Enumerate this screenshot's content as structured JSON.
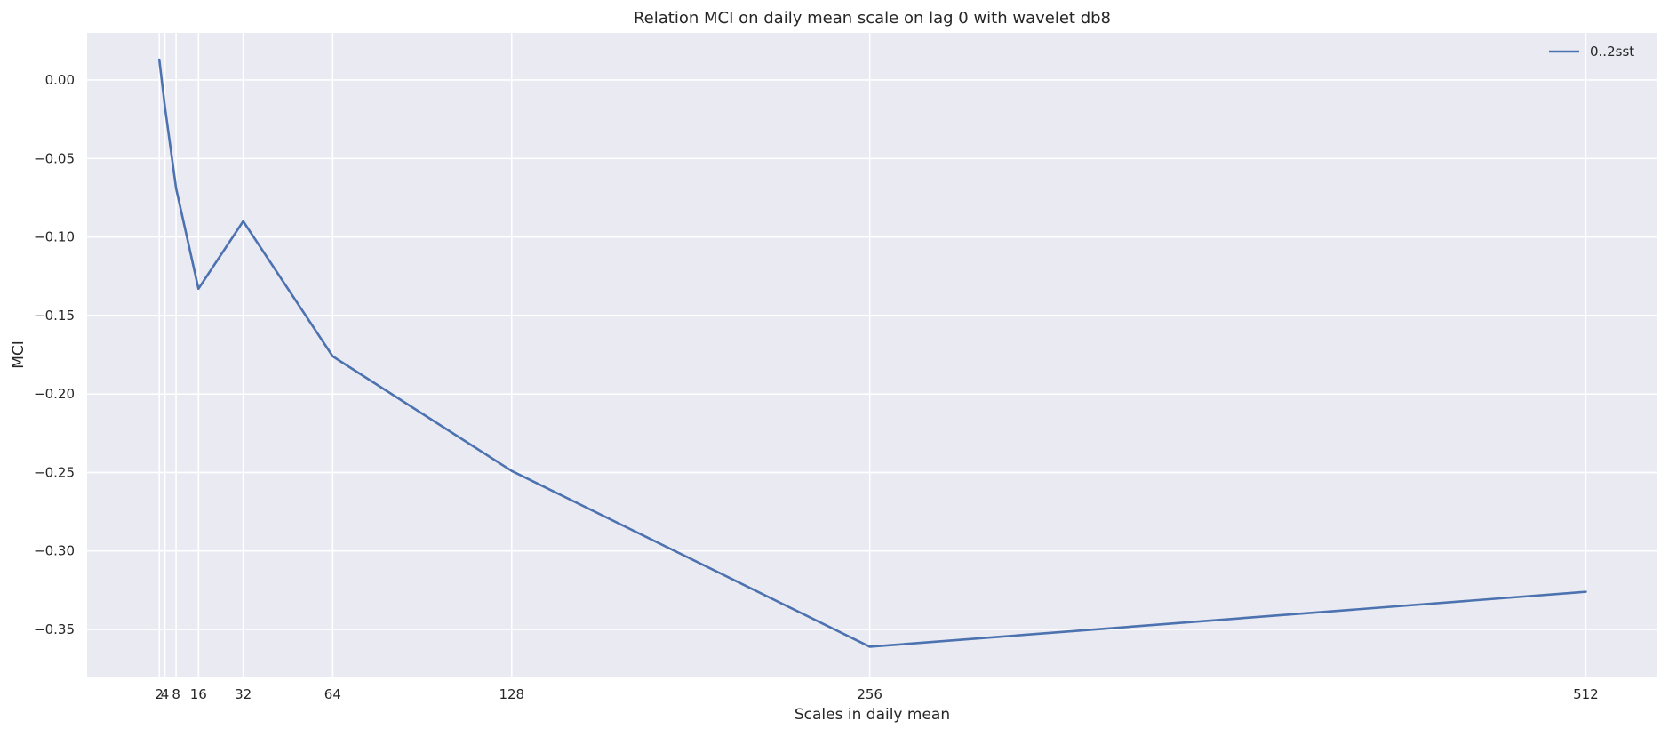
{
  "chart_data": {
    "type": "line",
    "title": "Relation MCI on daily mean scale on lag 0 with wavelet db8",
    "xlabel": "Scales in daily mean",
    "ylabel": "MCI",
    "x": [
      2,
      4,
      8,
      16,
      32,
      64,
      128,
      256,
      512
    ],
    "x_tick_labels": [
      "2",
      "4",
      "8",
      "16",
      "32",
      "64",
      "128",
      "256",
      "512"
    ],
    "xlim": [
      -23.8,
      537.6
    ],
    "ylim": [
      -0.38,
      0.03
    ],
    "yticks": [
      0.0,
      -0.05,
      -0.1,
      -0.15,
      -0.2,
      -0.25,
      -0.3,
      -0.35
    ],
    "y_tick_labels": [
      "0.00",
      "−0.05",
      "−0.10",
      "−0.15",
      "−0.20",
      "−0.25",
      "−0.30",
      "−0.35"
    ],
    "grid": true,
    "legend_position": "top-right",
    "series": [
      {
        "name": "0..2sst",
        "color": "#4c72b0",
        "values": [
          0.013,
          -0.017,
          -0.069,
          -0.133,
          -0.09,
          -0.176,
          -0.249,
          -0.361,
          -0.326
        ]
      }
    ]
  },
  "style": {
    "plot_background": "#eaeaf2",
    "grid_color": "#ffffff",
    "text_color": "#262626"
  }
}
